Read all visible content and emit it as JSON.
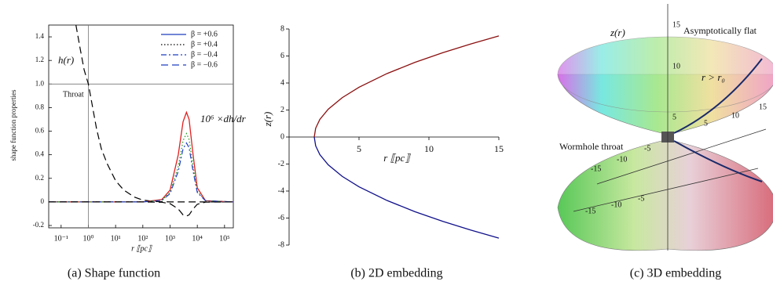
{
  "chart_data": [
    {
      "type": "line",
      "caption": "(a)  Shape function",
      "xlabel": "r ⟦pc⟧",
      "ylabel": "shape function properties",
      "log_x": true,
      "axis_position": "box",
      "xlim": [
        0.035,
        210000
      ],
      "ylim": [
        -0.22,
        1.5
      ],
      "xticks": [
        {
          "value": 0.1,
          "label": "10⁻¹"
        },
        {
          "value": 1,
          "label": "10⁰"
        },
        {
          "value": 10,
          "label": "10¹"
        },
        {
          "value": 100,
          "label": "10²"
        },
        {
          "value": 1000,
          "label": "10³"
        },
        {
          "value": 10000,
          "label": "10⁴"
        },
        {
          "value": 100000,
          "label": "10⁵"
        }
      ],
      "yticks": [
        -0.2,
        0,
        0.2,
        0.4,
        0.6,
        0.8,
        {
          "value": 1,
          "label": "1.0"
        },
        1.2,
        1.4
      ],
      "hline": 1,
      "vline": 1,
      "legend": "upper right",
      "annotations": [
        "h(r)",
        "Throat",
        "10⁶ ×dh/dr"
      ],
      "shape_curve": {
        "color": "#000000",
        "dash": "dashed",
        "x": [
          0.35,
          0.5,
          0.7,
          1,
          2,
          3,
          5,
          10,
          20,
          50,
          100,
          300,
          1000,
          210000
        ],
        "values": [
          1.5,
          1.3,
          1.12,
          1.0,
          0.62,
          0.45,
          0.32,
          0.18,
          0.1,
          0.04,
          0.015,
          0.003,
          0,
          0
        ]
      },
      "series": [
        {
          "name": "β = +0.6",
          "color": "#e02020",
          "legend_color": "#1f3fbf",
          "dash": "solid",
          "x": [
            0.035,
            100,
            500,
            1000,
            2000,
            3000,
            4000,
            5000,
            7000,
            10000,
            20000,
            210000
          ],
          "values": [
            0,
            0,
            0.02,
            0.1,
            0.4,
            0.68,
            0.76,
            0.7,
            0.4,
            0.12,
            0.01,
            0
          ]
        },
        {
          "name": "β = +0.4",
          "color": "#1a9a1a",
          "legend_color": "#000000",
          "dash": "dotted",
          "x": [
            0.035,
            100,
            500,
            1000,
            2000,
            3000,
            4000,
            5000,
            7000,
            10000,
            20000,
            210000
          ],
          "values": [
            0,
            0,
            0.015,
            0.08,
            0.3,
            0.52,
            0.58,
            0.53,
            0.3,
            0.09,
            0.01,
            0
          ]
        },
        {
          "name": "β = −0.4",
          "color": "#1f3fbf",
          "legend_color": "#1f3fbf",
          "dash": "dashdot",
          "x": [
            0.035,
            100,
            500,
            1000,
            2000,
            3000,
            4000,
            5000,
            7000,
            10000,
            20000,
            210000
          ],
          "values": [
            0,
            0,
            0.013,
            0.07,
            0.26,
            0.45,
            0.5,
            0.46,
            0.26,
            0.08,
            0.01,
            0
          ]
        },
        {
          "name": "β = −0.6",
          "color": "#000000",
          "legend_color": "#1f3fbf",
          "dash": "dashed",
          "x": [
            0.035,
            100,
            500,
            1000,
            2000,
            3000,
            4000,
            5000,
            7000,
            10000,
            20000,
            210000
          ],
          "values": [
            0,
            0,
            -0.003,
            -0.015,
            -0.06,
            -0.11,
            -0.12,
            -0.11,
            -0.06,
            -0.02,
            -0.002,
            0
          ]
        }
      ]
    },
    {
      "type": "line",
      "caption": "(b)  2D embedding",
      "xlabel": "r ⟦pc⟧",
      "ylabel": "z(r)",
      "axis_position": "zero",
      "xlim": [
        0,
        15
      ],
      "ylim": [
        -8,
        8
      ],
      "xticks": [
        5,
        10,
        15
      ],
      "yticks": [
        -8,
        -6,
        -4,
        -2,
        0,
        2,
        4,
        6,
        8
      ],
      "series": [
        {
          "color": "#8b1010",
          "dash": "solid",
          "x": [
            1.8,
            1.9,
            2.2,
            2.8,
            3.8,
            5,
            7,
            9,
            11,
            13,
            15
          ],
          "values": [
            0,
            0.651,
            1.303,
            2.06,
            2.913,
            3.685,
            4.697,
            5.527,
            6.248,
            6.894,
            7.484
          ]
        },
        {
          "color": "#10108b",
          "dash": "solid",
          "x": [
            1.8,
            1.9,
            2.2,
            2.8,
            3.8,
            5,
            7,
            9,
            11,
            13,
            15
          ],
          "values": [
            0,
            -0.651,
            -1.303,
            -2.06,
            -2.913,
            -3.685,
            -4.697,
            -5.527,
            -6.248,
            -6.894,
            -7.484
          ]
        }
      ]
    }
  ],
  "panel_c": {
    "caption": "(c)  3D embedding",
    "z_label": "z(r)",
    "top_label": "Asymptotically flat",
    "radius_label": "r > r₀",
    "throat_label": "Wormhole throat",
    "tick_labels": [
      "15",
      "10",
      "5",
      "5",
      "10",
      "15",
      "-5",
      "-10",
      "-15",
      "-5",
      "-10",
      "-15"
    ]
  }
}
